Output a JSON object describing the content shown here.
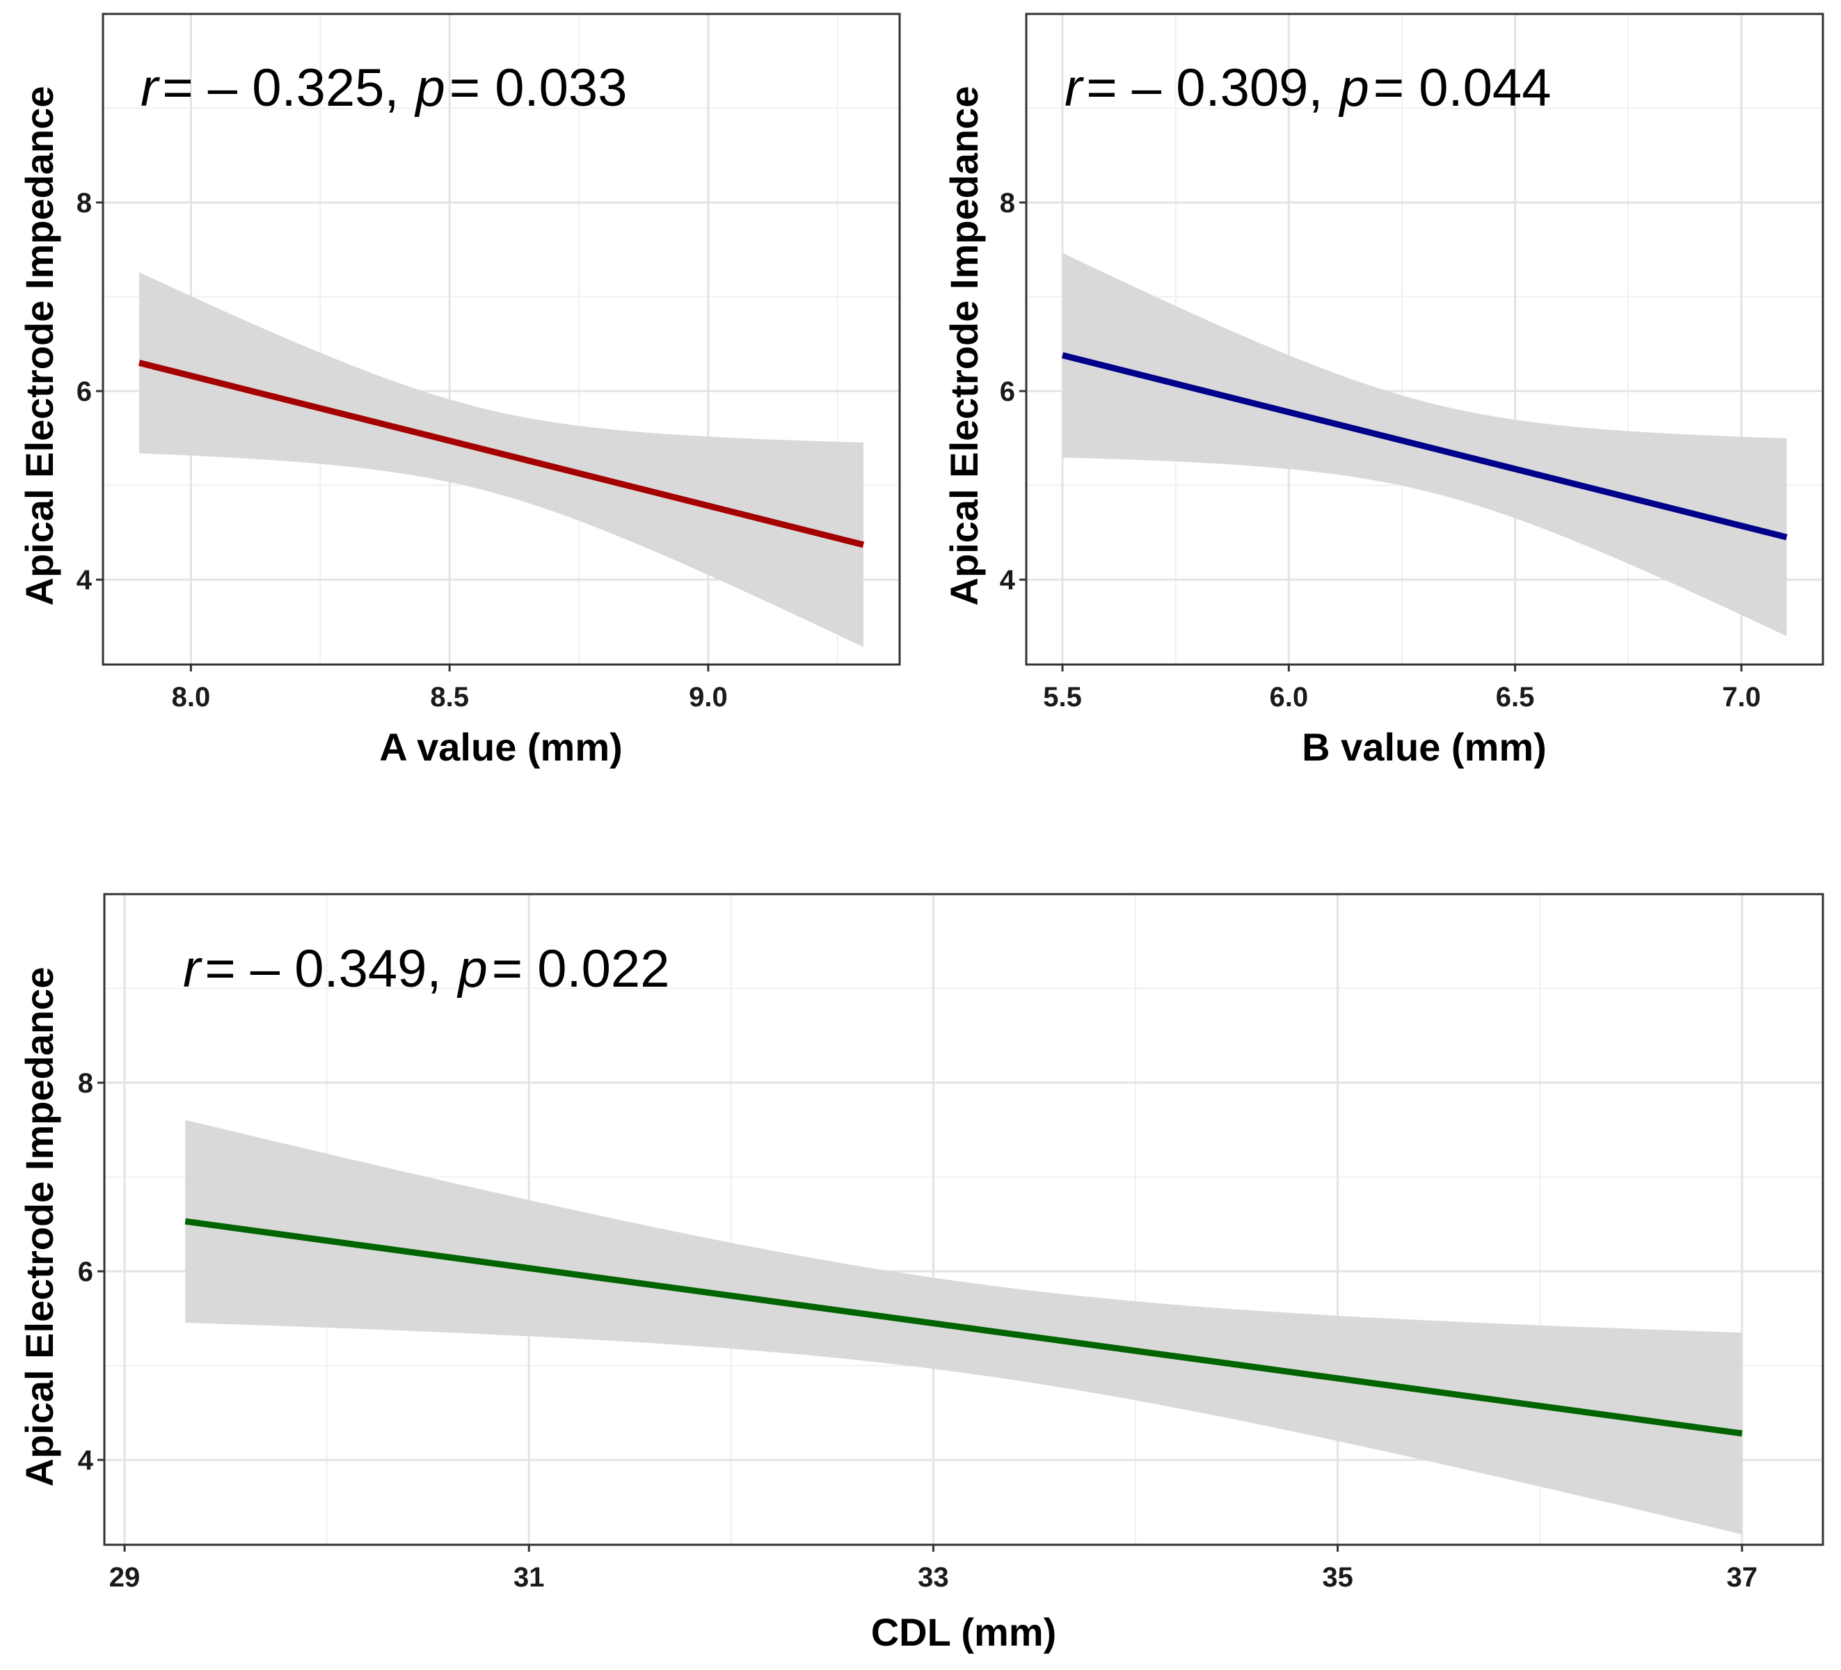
{
  "chart_data": [
    {
      "type": "line",
      "xlabel": "A value (mm)",
      "ylabel": "Apical Electrode Impedance",
      "annotation": {
        "r_label": "r",
        "r_value": "= – 0.325,",
        "p_label": "p",
        "p_value": "= 0.033"
      },
      "xlim": [
        7.83,
        9.37
      ],
      "ylim": [
        3.1,
        10.0
      ],
      "x_ticks": [
        8.0,
        8.5,
        9.0
      ],
      "x_tick_labels": [
        "8.0",
        "8.5",
        "9.0"
      ],
      "y_ticks": [
        4,
        6,
        8
      ],
      "y_tick_labels": [
        "4",
        "6",
        "8"
      ],
      "grid": true,
      "series": [
        {
          "color": "#a50000",
          "x": [
            7.9,
            9.3
          ],
          "y": [
            6.3,
            4.37
          ],
          "ci_lower": [
            5.35,
            3.28
          ],
          "ci_upper": [
            7.27,
            5.45
          ]
        }
      ]
    },
    {
      "type": "line",
      "xlabel": "B value (mm)",
      "ylabel": "Apical Electrode Impedance",
      "annotation": {
        "r_label": "r",
        "r_value": "= – 0.309,",
        "p_label": "p",
        "p_value": "= 0.044"
      },
      "xlim": [
        5.42,
        7.18
      ],
      "ylim": [
        3.1,
        10.0
      ],
      "x_ticks": [
        5.5,
        6.0,
        6.5,
        7.0
      ],
      "x_tick_labels": [
        "5.5",
        "6.0",
        "6.5",
        "7.0"
      ],
      "y_ticks": [
        4,
        6,
        8
      ],
      "y_tick_labels": [
        "4",
        "6",
        "8"
      ],
      "grid": true,
      "series": [
        {
          "color": "#00008b",
          "x": [
            5.5,
            7.1
          ],
          "y": [
            6.38,
            4.45
          ],
          "ci_lower": [
            5.3,
            3.4
          ],
          "ci_upper": [
            7.47,
            5.5
          ]
        }
      ]
    },
    {
      "type": "line",
      "xlabel": "CDL (mm)",
      "ylabel": "Apical Electrode Impedance",
      "annotation": {
        "r_label": "r",
        "r_value": "= – 0.349,",
        "p_label": "p",
        "p_value": "= 0.022"
      },
      "xlim": [
        28.9,
        37.4
      ],
      "ylim": [
        3.1,
        10.0
      ],
      "x_ticks": [
        29,
        31,
        33,
        35,
        37
      ],
      "x_tick_labels": [
        "29",
        "31",
        "33",
        "35",
        "37"
      ],
      "y_ticks": [
        4,
        6,
        8
      ],
      "y_tick_labels": [
        "4",
        "6",
        "8"
      ],
      "grid": true,
      "series": [
        {
          "color": "#006400",
          "x": [
            29.3,
            37.0
          ],
          "y": [
            6.53,
            4.28
          ],
          "ci_lower": [
            5.45,
            3.22
          ],
          "ci_upper": [
            7.6,
            5.36
          ]
        }
      ]
    }
  ]
}
